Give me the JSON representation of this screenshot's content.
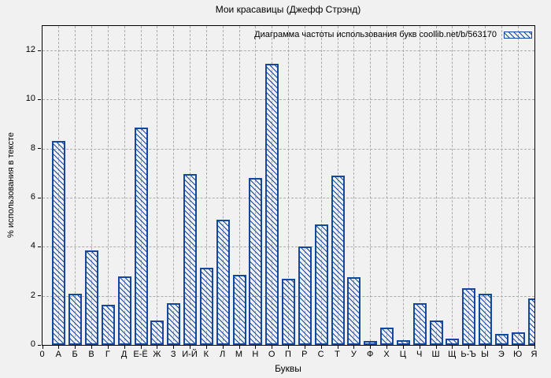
{
  "chart_data": {
    "type": "bar",
    "title": "Мои красавицы (Джефф Стрэнд)",
    "legend_label": "Диаграмма частоты использования букв coollib.net/b/563170",
    "xlabel": "Буквы",
    "ylabel": "% использования в тексте",
    "origin_tick_label": "0",
    "categories": [
      "А",
      "Б",
      "В",
      "Г",
      "Д",
      "Е-Ё",
      "Ж",
      "З",
      "И-Й",
      "К",
      "Л",
      "М",
      "Н",
      "О",
      "П",
      "Р",
      "С",
      "Т",
      "У",
      "Ф",
      "Х",
      "Ц",
      "Ч",
      "Ш",
      "Щ",
      "Ь-Ъ",
      "Ы",
      "Э",
      "Ю",
      "Я"
    ],
    "values": [
      8.3,
      2.1,
      3.85,
      1.65,
      2.8,
      8.85,
      1.0,
      1.7,
      6.95,
      3.15,
      5.1,
      2.85,
      6.8,
      11.45,
      2.7,
      4.0,
      4.9,
      6.9,
      2.75,
      0.15,
      0.7,
      0.2,
      1.7,
      1.0,
      0.25,
      2.3,
      2.1,
      0.45,
      0.5,
      1.9
    ],
    "yticks": [
      0,
      2,
      4,
      6,
      8,
      10,
      12
    ],
    "ylim": [
      0,
      13
    ],
    "grid": true,
    "legend_position": "top-right",
    "hatch": "diagonal-backslash",
    "bar_color": "#14489f",
    "grid_color": "#ababab",
    "background_color": "#f1f1f1"
  }
}
